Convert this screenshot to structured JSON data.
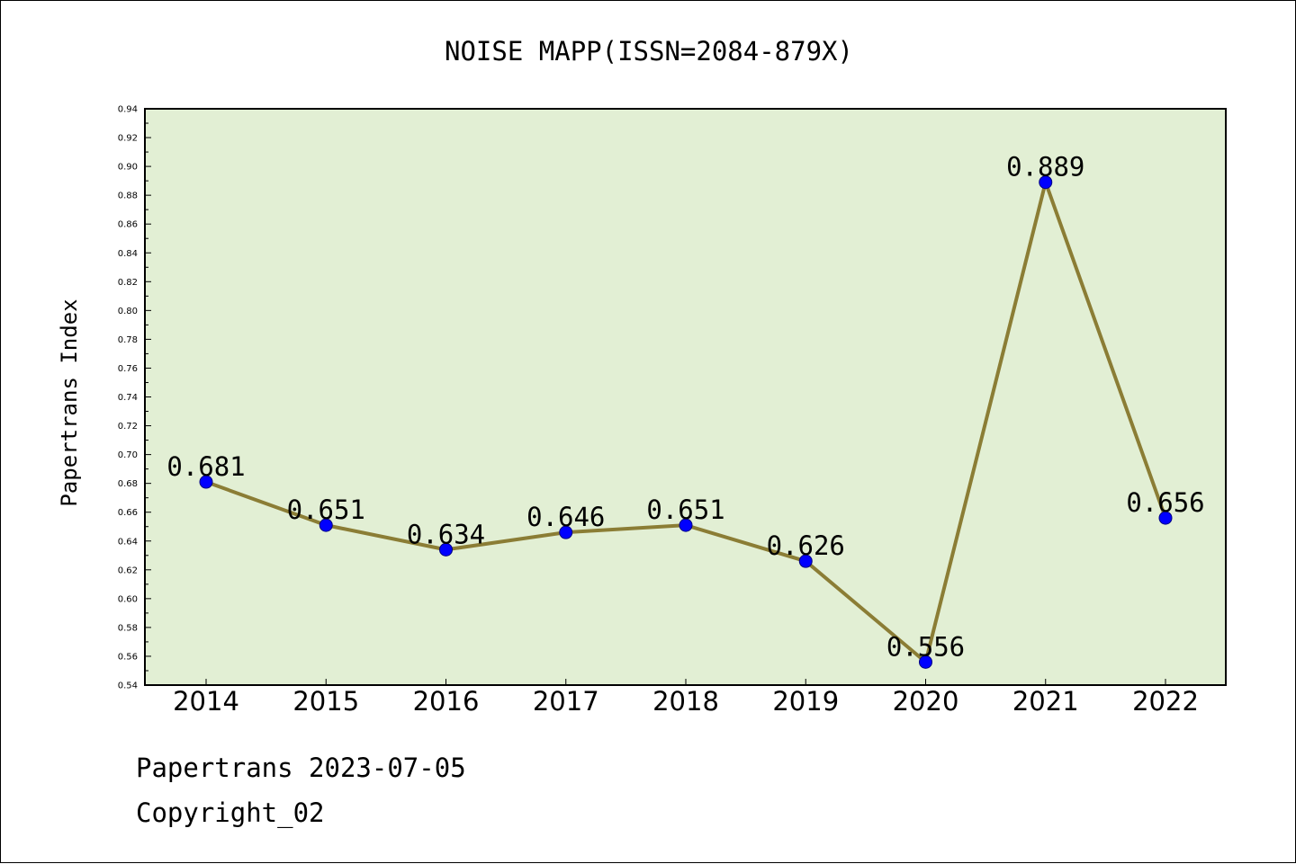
{
  "colors": {
    "plot_background": "#e2efd4",
    "line": "#8b7d35",
    "marker": "#0000ff",
    "marker_edge": "#000080"
  },
  "chart_data": {
    "type": "line",
    "title": "NOISE MAPP(ISSN=2084-879X)",
    "ylabel": "Papertrans Index",
    "xlabel": "",
    "categories": [
      "2014",
      "2015",
      "2016",
      "2017",
      "2018",
      "2019",
      "2020",
      "2021",
      "2022"
    ],
    "series": [
      {
        "values": [
          0.681,
          0.651,
          0.634,
          0.646,
          0.651,
          0.626,
          0.556,
          0.889,
          0.656
        ]
      }
    ],
    "data_labels": [
      "0.681",
      "0.651",
      "0.634",
      "0.646",
      "0.651",
      "0.626",
      "0.556",
      "0.889",
      "0.656"
    ],
    "ylim": [
      0.54,
      0.94
    ],
    "yticks": [
      "0.54",
      "0.56",
      "0.58",
      "0.60",
      "0.62",
      "0.64",
      "0.66",
      "0.68",
      "0.70",
      "0.72",
      "0.74",
      "0.76",
      "0.78",
      "0.80",
      "0.82",
      "0.84",
      "0.86",
      "0.88",
      "0.90",
      "0.92",
      "0.94"
    ],
    "grid": false,
    "legend": "none"
  },
  "footer": {
    "line1": "Papertrans 2023-07-05",
    "line2": "Copyright_02"
  }
}
